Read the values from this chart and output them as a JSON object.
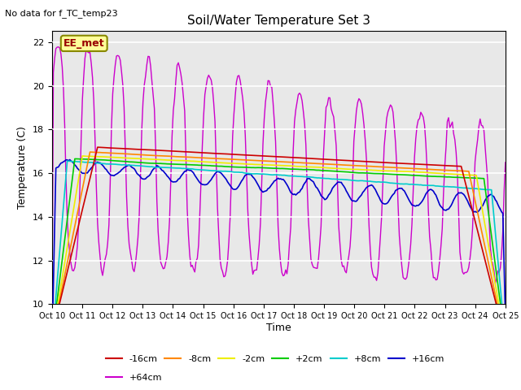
{
  "title": "Soil/Water Temperature Set 3",
  "xlabel": "Time",
  "ylabel": "Temperature (C)",
  "no_data_label": "No data for f_TC_temp23",
  "annotation_label": "EE_met",
  "ylim": [
    10,
    22.5
  ],
  "yticks": [
    10,
    12,
    14,
    16,
    18,
    20,
    22
  ],
  "xtick_labels": [
    "Oct 10",
    "Oct 11",
    "Oct 12",
    "Oct 13",
    "Oct 14",
    "Oct 15",
    "Oct 16",
    "Oct 17",
    "Oct 18",
    "Oct 19",
    "Oct 20",
    "Oct 21",
    "Oct 22",
    "Oct 23",
    "Oct 24",
    "Oct 25"
  ],
  "series_colors": {
    "-16cm": "#cc0000",
    "-8cm": "#ff8800",
    "-2cm": "#eeee00",
    "+2cm": "#00cc00",
    "+8cm": "#00cccc",
    "+16cm": "#0000cc",
    "+64cm": "#cc00cc"
  },
  "background_color": "#e8e8e8",
  "grid_color": "#ffffff",
  "annotation_box_color": "#ffff99",
  "annotation_box_edge": "#888800",
  "figsize": [
    6.4,
    4.8
  ],
  "dpi": 100
}
